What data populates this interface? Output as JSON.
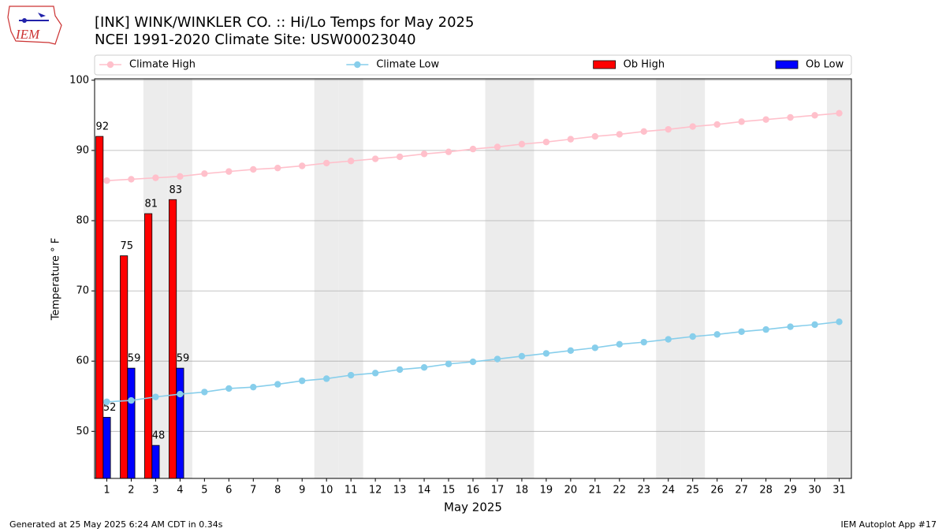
{
  "chart_data": {
    "type": "bar",
    "title": "[INK] WINK/WINKLER CO. :: Hi/Lo Temps for May 2025",
    "subtitle": "NCEI 1991-2020 Climate Site: USW00023040",
    "logo_text": "IEM",
    "x_label": "May 2025",
    "y_label": "Temperature ° F",
    "footer_left": "Generated at 25 May 2025 6:24 AM CDT in 0.34s",
    "footer_right": "IEM Autoplot App #17",
    "x": [
      1,
      2,
      3,
      4,
      5,
      6,
      7,
      8,
      9,
      10,
      11,
      12,
      13,
      14,
      15,
      16,
      17,
      18,
      19,
      20,
      21,
      22,
      23,
      24,
      25,
      26,
      27,
      28,
      29,
      30,
      31
    ],
    "xlim": [
      0.5,
      31.5
    ],
    "xticks": [
      1,
      2,
      3,
      4,
      5,
      6,
      7,
      8,
      9,
      10,
      11,
      12,
      13,
      14,
      15,
      16,
      17,
      18,
      19,
      20,
      21,
      22,
      23,
      24,
      25,
      26,
      27,
      28,
      29,
      30,
      31
    ],
    "ylim": [
      43.3,
      100.2
    ],
    "yticks": [
      50,
      60,
      70,
      80,
      90,
      100
    ],
    "grid": true,
    "legend": "top",
    "shaded_x": [
      3,
      4,
      10,
      11,
      17,
      18,
      24,
      25,
      31
    ],
    "series": [
      {
        "name": "Climate High",
        "type": "line",
        "color": "#ffc0cb",
        "values": [
          85.7,
          85.9,
          86.1,
          86.3,
          86.7,
          87.0,
          87.3,
          87.5,
          87.8,
          88.2,
          88.5,
          88.8,
          89.1,
          89.5,
          89.8,
          90.2,
          90.5,
          90.9,
          91.2,
          91.6,
          92.0,
          92.3,
          92.7,
          93.0,
          93.4,
          93.7,
          94.1,
          94.4,
          94.7,
          95.0,
          95.3
        ]
      },
      {
        "name": "Climate Low",
        "type": "line",
        "color": "#87ceeb",
        "values": [
          54.2,
          54.4,
          54.9,
          55.3,
          55.6,
          56.1,
          56.3,
          56.7,
          57.2,
          57.5,
          58.0,
          58.3,
          58.8,
          59.1,
          59.6,
          59.9,
          60.3,
          60.7,
          61.1,
          61.5,
          61.9,
          62.4,
          62.7,
          63.1,
          63.5,
          63.8,
          64.2,
          64.5,
          64.9,
          65.2,
          65.6
        ]
      },
      {
        "name": "Ob High",
        "type": "bar",
        "color": "#ff0000",
        "values": [
          92,
          75,
          81,
          83,
          null,
          null,
          null,
          null,
          null,
          null,
          null,
          null,
          null,
          null,
          null,
          null,
          null,
          null,
          null,
          null,
          null,
          null,
          null,
          null,
          null,
          null,
          null,
          null,
          null,
          null,
          null
        ]
      },
      {
        "name": "Ob Low",
        "type": "bar",
        "color": "#0000ff",
        "values": [
          52,
          59,
          48,
          59,
          null,
          null,
          null,
          null,
          null,
          null,
          null,
          null,
          null,
          null,
          null,
          null,
          null,
          null,
          null,
          null,
          null,
          null,
          null,
          null,
          null,
          null,
          null,
          null,
          null,
          null,
          null
        ]
      }
    ]
  }
}
